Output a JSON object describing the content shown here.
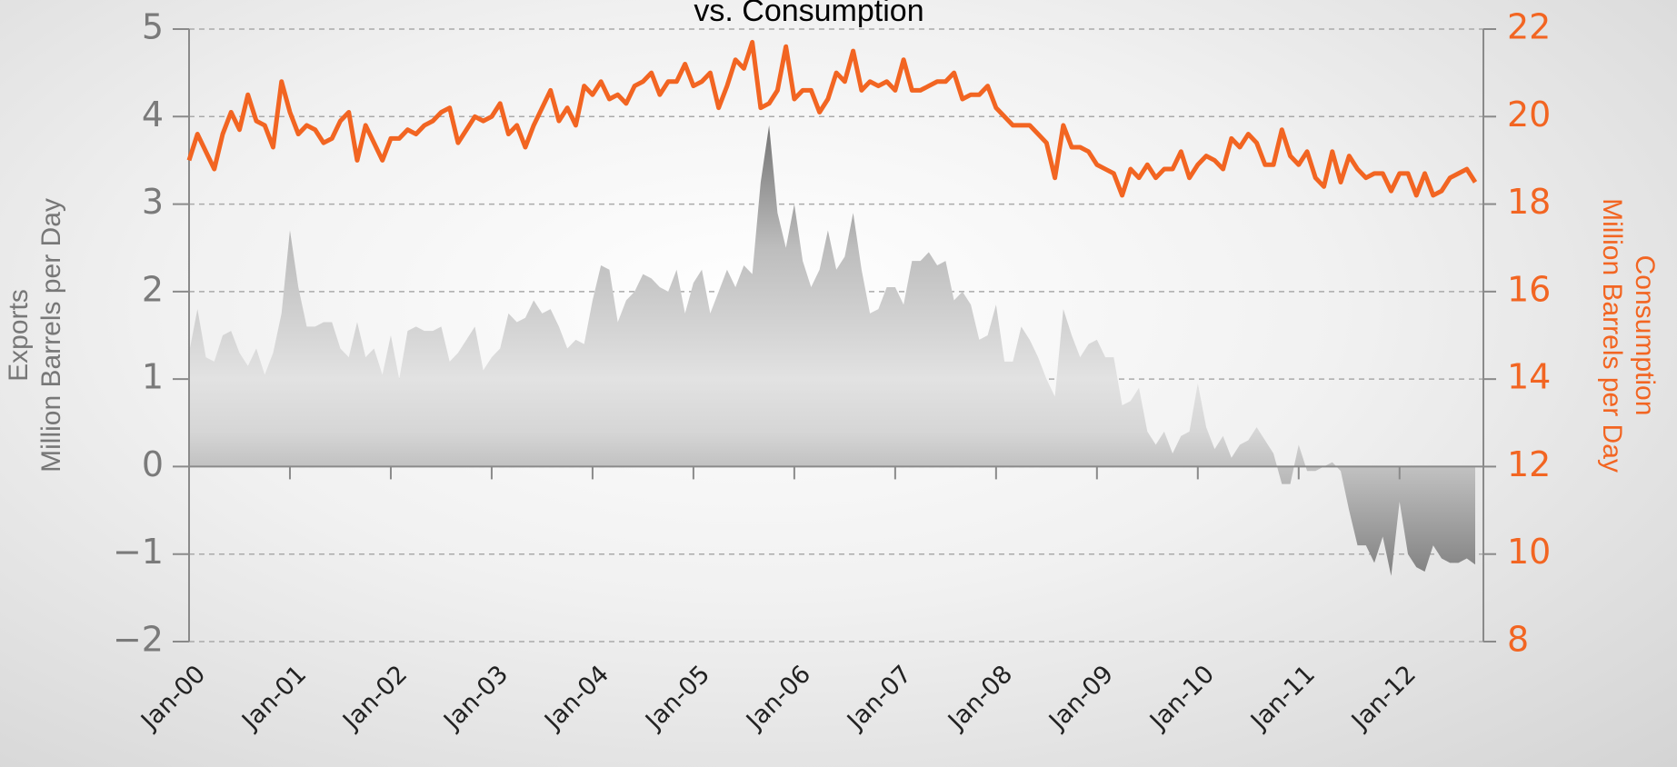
{
  "chart_data": {
    "type": "area-line",
    "title": "vs. Consumption",
    "ylabel": [
      "Exports",
      "Million Barrels per Day"
    ],
    "y2label": [
      "Consumption",
      "Million Barrels per Day"
    ],
    "categories": [
      "Jan-00",
      null,
      null,
      null,
      null,
      null,
      null,
      null,
      null,
      null,
      null,
      null,
      "Jan-01",
      null,
      null,
      null,
      null,
      null,
      null,
      null,
      null,
      null,
      null,
      null,
      "Jan-02",
      null,
      null,
      null,
      null,
      null,
      null,
      null,
      null,
      null,
      null,
      null,
      "Jan-03",
      null,
      null,
      null,
      null,
      null,
      null,
      null,
      null,
      null,
      null,
      null,
      "Jan-04",
      null,
      null,
      null,
      null,
      null,
      null,
      null,
      null,
      null,
      null,
      null,
      "Jan-05",
      null,
      null,
      null,
      null,
      null,
      null,
      null,
      null,
      null,
      null,
      null,
      "Jan-06",
      null,
      null,
      null,
      null,
      null,
      null,
      null,
      null,
      null,
      null,
      null,
      "Jan-07",
      null,
      null,
      null,
      null,
      null,
      null,
      null,
      null,
      null,
      null,
      null,
      "Jan-08",
      null,
      null,
      null,
      null,
      null,
      null,
      null,
      null,
      null,
      null,
      null,
      "Jan-09",
      null,
      null,
      null,
      null,
      null,
      null,
      null,
      null,
      null,
      null,
      null,
      "Jan-10",
      null,
      null,
      null,
      null,
      null,
      null,
      null,
      null,
      null,
      null,
      null,
      "Jan-11",
      null,
      null,
      null,
      null,
      null,
      null,
      null,
      null,
      null,
      null,
      null,
      "Jan-12",
      null,
      null,
      null,
      null,
      null,
      null,
      null,
      null,
      null
    ],
    "series": [
      {
        "name": "Exports",
        "color": "#8c8c8c",
        "kind": "area",
        "values": [
          1.3,
          1.8,
          1.25,
          1.2,
          1.5,
          1.55,
          1.3,
          1.15,
          1.35,
          1.05,
          1.3,
          1.75,
          2.7,
          2.05,
          1.6,
          1.6,
          1.65,
          1.65,
          1.35,
          1.25,
          1.65,
          1.25,
          1.35,
          1.05,
          1.5,
          1.0,
          1.55,
          1.6,
          1.55,
          1.55,
          1.6,
          1.2,
          1.3,
          1.45,
          1.6,
          1.1,
          1.25,
          1.35,
          1.75,
          1.65,
          1.7,
          1.9,
          1.75,
          1.8,
          1.6,
          1.35,
          1.45,
          1.4,
          1.9,
          2.3,
          2.25,
          1.65,
          1.9,
          2.0,
          2.2,
          2.15,
          2.05,
          2.0,
          2.25,
          1.75,
          2.1,
          2.25,
          1.75,
          2.0,
          2.25,
          2.05,
          2.3,
          2.2,
          3.25,
          3.9,
          2.9,
          2.5,
          3.0,
          2.35,
          2.05,
          2.25,
          2.7,
          2.25,
          2.4,
          2.9,
          2.25,
          1.75,
          1.8,
          2.05,
          2.05,
          1.85,
          2.35,
          2.35,
          2.45,
          2.3,
          2.35,
          1.9,
          2.0,
          1.85,
          1.45,
          1.5,
          1.85,
          1.2,
          1.2,
          1.6,
          1.45,
          1.25,
          1.0,
          0.8,
          1.8,
          1.5,
          1.25,
          1.4,
          1.45,
          1.25,
          1.25,
          0.7,
          0.75,
          0.9,
          0.4,
          0.25,
          0.4,
          0.15,
          0.35,
          0.4,
          0.95,
          0.45,
          0.2,
          0.35,
          0.1,
          0.25,
          0.3,
          0.45,
          0.3,
          0.15,
          -0.2,
          -0.2,
          0.25,
          -0.05,
          -0.05,
          0.0,
          0.05,
          -0.05,
          -0.5,
          -0.9,
          -0.9,
          -1.1,
          -0.8,
          -1.25,
          -0.4,
          -1.0,
          -1.15,
          -1.2,
          -0.9,
          -1.05,
          -1.1,
          -1.1,
          -1.05,
          -1.12
        ]
      },
      {
        "name": "Consumption",
        "color": "#f26522",
        "kind": "line",
        "axis": "y2",
        "values": [
          19.0,
          19.6,
          19.2,
          18.8,
          19.6,
          20.1,
          19.7,
          20.5,
          19.9,
          19.8,
          19.3,
          20.8,
          20.1,
          19.6,
          19.8,
          19.7,
          19.4,
          19.5,
          19.9,
          20.1,
          19.0,
          19.8,
          19.4,
          19.0,
          19.5,
          19.5,
          19.7,
          19.6,
          19.8,
          19.9,
          20.1,
          20.2,
          19.4,
          19.7,
          20.0,
          19.9,
          20.0,
          20.3,
          19.6,
          19.8,
          19.3,
          19.8,
          20.2,
          20.6,
          19.9,
          20.2,
          19.8,
          20.7,
          20.5,
          20.8,
          20.4,
          20.5,
          20.3,
          20.7,
          20.8,
          21.0,
          20.5,
          20.8,
          20.8,
          21.2,
          20.7,
          20.8,
          21.0,
          20.2,
          20.7,
          21.3,
          21.1,
          21.7,
          20.2,
          20.3,
          20.6,
          21.6,
          20.4,
          20.6,
          20.6,
          20.1,
          20.4,
          21.0,
          20.8,
          21.5,
          20.6,
          20.8,
          20.7,
          20.8,
          20.6,
          21.3,
          20.6,
          20.6,
          20.7,
          20.8,
          20.8,
          21.0,
          20.4,
          20.5,
          20.5,
          20.7,
          20.2,
          20.0,
          19.8,
          19.8,
          19.8,
          19.6,
          19.4,
          18.6,
          19.8,
          19.3,
          19.3,
          19.2,
          18.9,
          18.8,
          18.7,
          18.2,
          18.8,
          18.6,
          18.9,
          18.6,
          18.8,
          18.8,
          19.2,
          18.6,
          18.9,
          19.1,
          19.0,
          18.8,
          19.5,
          19.3,
          19.6,
          19.4,
          18.9,
          18.9,
          19.7,
          19.1,
          18.9,
          19.2,
          18.6,
          18.4,
          19.2,
          18.5,
          19.1,
          18.8,
          18.6,
          18.7,
          18.7,
          18.3,
          18.7,
          18.7,
          18.2,
          18.7,
          18.2,
          18.3,
          18.6,
          18.7,
          18.8,
          18.5
        ]
      }
    ],
    "ylim": [
      -2,
      5
    ],
    "yticks": [
      {
        "value": -2,
        "label": "−2"
      },
      {
        "value": -1,
        "label": "−1"
      },
      0,
      1,
      2,
      3,
      4,
      5
    ],
    "y2lim": [
      8,
      22
    ],
    "y2ticks": [
      8,
      10,
      12,
      14,
      16,
      18,
      20,
      22
    ],
    "grid": true
  }
}
